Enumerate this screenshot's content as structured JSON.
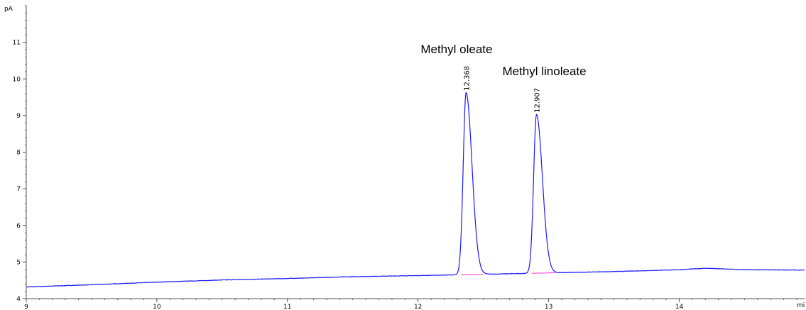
{
  "chart_data": {
    "type": "line",
    "title": "",
    "xlabel": "",
    "ylabel": "",
    "y_unit_label": "pA",
    "x_unit_label": "mi",
    "xlim": [
      9,
      14.96
    ],
    "ylim": [
      4,
      12
    ],
    "x_ticks": [
      9,
      10,
      11,
      12,
      13,
      14
    ],
    "y_ticks": [
      4,
      5,
      6,
      7,
      8,
      9,
      10,
      11
    ],
    "grid": false,
    "colors": {
      "signal": "#1a1aff",
      "baseline": "#ff33cc",
      "axis": "#555555"
    },
    "baseline_start": [
      9.0,
      4.32
    ],
    "baseline_points": [
      [
        9.0,
        4.32
      ],
      [
        9.5,
        4.38
      ],
      [
        10.0,
        4.45
      ],
      [
        10.5,
        4.51
      ],
      [
        11.0,
        4.55
      ],
      [
        11.5,
        4.6
      ],
      [
        12.0,
        4.63
      ],
      [
        12.3,
        4.65
      ],
      [
        13.1,
        4.71
      ],
      [
        13.5,
        4.74
      ],
      [
        14.0,
        4.79
      ],
      [
        14.2,
        4.83
      ],
      [
        14.5,
        4.79
      ],
      [
        14.96,
        4.78
      ]
    ],
    "peaks": [
      {
        "rt": 12.368,
        "rt_label": "12.368",
        "name": "Methyl oleate",
        "height": 9.62,
        "base": 4.65,
        "sigma": 0.022,
        "tail": 0.045,
        "integration": [
          12.33,
          12.5
        ]
      },
      {
        "rt": 12.907,
        "rt_label": "12.907",
        "name": "Methyl linoleate",
        "height": 9.02,
        "base": 4.69,
        "sigma": 0.022,
        "tail": 0.045,
        "integration": [
          12.87,
          13.05
        ]
      }
    ]
  }
}
